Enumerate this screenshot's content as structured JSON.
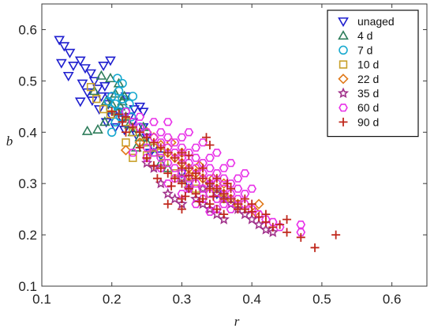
{
  "chart_data": {
    "type": "scatter",
    "xlabel": "r",
    "ylabel": "b",
    "xlim": [
      0.1,
      0.65
    ],
    "ylim": [
      0.1,
      0.65
    ],
    "x_ticks": [
      "0.1",
      "0.2",
      "0.3",
      "0.4",
      "0.5",
      "0.6"
    ],
    "y_ticks": [
      "0.1",
      "0.2",
      "0.3",
      "0.4",
      "0.5",
      "0.6"
    ],
    "grid": false,
    "legend_position": "top-right",
    "series": [
      {
        "name": "unaged",
        "marker": "triangle-down",
        "color": "#1f1fcf",
        "points": [
          [
            0.125,
            0.58
          ],
          [
            0.132,
            0.568
          ],
          [
            0.14,
            0.555
          ],
          [
            0.128,
            0.535
          ],
          [
            0.145,
            0.53
          ],
          [
            0.138,
            0.51
          ],
          [
            0.155,
            0.54
          ],
          [
            0.162,
            0.525
          ],
          [
            0.17,
            0.515
          ],
          [
            0.158,
            0.495
          ],
          [
            0.165,
            0.478
          ],
          [
            0.175,
            0.5
          ],
          [
            0.18,
            0.485
          ],
          [
            0.155,
            0.46
          ],
          [
            0.172,
            0.462
          ],
          [
            0.185,
            0.47
          ],
          [
            0.19,
            0.49
          ],
          [
            0.182,
            0.445
          ],
          [
            0.195,
            0.455
          ],
          [
            0.2,
            0.43
          ],
          [
            0.192,
            0.42
          ],
          [
            0.205,
            0.41
          ],
          [
            0.21,
            0.44
          ],
          [
            0.215,
            0.425
          ],
          [
            0.225,
            0.43
          ],
          [
            0.23,
            0.42
          ],
          [
            0.218,
            0.405
          ],
          [
            0.24,
            0.45
          ],
          [
            0.245,
            0.41
          ],
          [
            0.235,
            0.395
          ],
          [
            0.25,
            0.39
          ],
          [
            0.26,
            0.37
          ],
          [
            0.255,
            0.36
          ],
          [
            0.27,
            0.355
          ],
          [
            0.245,
            0.44
          ],
          [
            0.232,
            0.445
          ],
          [
            0.188,
            0.53
          ],
          [
            0.196,
            0.47
          ],
          [
            0.198,
            0.54
          ],
          [
            0.22,
            0.47
          ],
          [
            0.3,
            0.32
          ],
          [
            0.35,
            0.28
          ],
          [
            0.31,
            0.3
          ]
        ]
      },
      {
        "name": "4 d",
        "marker": "triangle-up",
        "color": "#2e7d5b",
        "points": [
          [
            0.165,
            0.402
          ],
          [
            0.18,
            0.405
          ],
          [
            0.19,
            0.42
          ],
          [
            0.2,
            0.455
          ],
          [
            0.208,
            0.44
          ],
          [
            0.215,
            0.46
          ],
          [
            0.22,
            0.43
          ],
          [
            0.225,
            0.415
          ],
          [
            0.23,
            0.4
          ],
          [
            0.205,
            0.475
          ],
          [
            0.21,
            0.495
          ],
          [
            0.198,
            0.505
          ],
          [
            0.185,
            0.51
          ],
          [
            0.175,
            0.48
          ],
          [
            0.24,
            0.39
          ],
          [
            0.25,
            0.38
          ],
          [
            0.235,
            0.37
          ],
          [
            0.26,
            0.36
          ],
          [
            0.27,
            0.34
          ],
          [
            0.28,
            0.33
          ],
          [
            0.245,
            0.41
          ],
          [
            0.212,
            0.45
          ],
          [
            0.218,
            0.47
          ],
          [
            0.192,
            0.46
          ]
        ]
      },
      {
        "name": "7 d",
        "marker": "circle",
        "color": "#17a9cf",
        "points": [
          [
            0.195,
            0.46
          ],
          [
            0.2,
            0.47
          ],
          [
            0.205,
            0.455
          ],
          [
            0.21,
            0.48
          ],
          [
            0.215,
            0.465
          ],
          [
            0.22,
            0.44
          ],
          [
            0.225,
            0.455
          ],
          [
            0.23,
            0.47
          ],
          [
            0.228,
            0.43
          ],
          [
            0.212,
            0.43
          ],
          [
            0.205,
            0.42
          ],
          [
            0.2,
            0.4
          ],
          [
            0.198,
            0.445
          ],
          [
            0.24,
            0.41
          ],
          [
            0.21,
            0.44
          ],
          [
            0.215,
            0.495
          ],
          [
            0.208,
            0.505
          ]
        ]
      },
      {
        "name": "10 d",
        "marker": "square",
        "color": "#c8a02a",
        "points": [
          [
            0.17,
            0.488
          ],
          [
            0.178,
            0.465
          ],
          [
            0.188,
            0.445
          ],
          [
            0.198,
            0.435
          ],
          [
            0.22,
            0.42
          ],
          [
            0.23,
            0.4
          ],
          [
            0.245,
            0.38
          ],
          [
            0.25,
            0.355
          ],
          [
            0.26,
            0.37
          ],
          [
            0.275,
            0.34
          ],
          [
            0.29,
            0.32
          ],
          [
            0.3,
            0.31
          ],
          [
            0.32,
            0.29
          ],
          [
            0.34,
            0.28
          ],
          [
            0.36,
            0.27
          ],
          [
            0.38,
            0.26
          ],
          [
            0.23,
            0.35
          ],
          [
            0.22,
            0.38
          ],
          [
            0.27,
            0.36
          ],
          [
            0.31,
            0.3
          ]
        ]
      },
      {
        "name": "22 d",
        "marker": "diamond",
        "color": "#e07818",
        "points": [
          [
            0.25,
            0.4
          ],
          [
            0.26,
            0.39
          ],
          [
            0.24,
            0.38
          ],
          [
            0.22,
            0.365
          ],
          [
            0.27,
            0.375
          ],
          [
            0.28,
            0.36
          ],
          [
            0.29,
            0.35
          ],
          [
            0.3,
            0.34
          ],
          [
            0.31,
            0.33
          ],
          [
            0.32,
            0.32
          ],
          [
            0.33,
            0.31
          ],
          [
            0.34,
            0.3
          ],
          [
            0.35,
            0.29
          ],
          [
            0.36,
            0.28
          ],
          [
            0.37,
            0.27
          ],
          [
            0.38,
            0.26
          ],
          [
            0.395,
            0.25
          ],
          [
            0.405,
            0.245
          ],
          [
            0.41,
            0.26
          ],
          [
            0.3,
            0.36
          ],
          [
            0.285,
            0.38
          ],
          [
            0.345,
            0.31
          ],
          [
            0.36,
            0.3
          ],
          [
            0.325,
            0.335
          ],
          [
            0.31,
            0.315
          ]
        ]
      },
      {
        "name": "35 d",
        "marker": "star",
        "color": "#a0308a",
        "points": [
          [
            0.27,
            0.3
          ],
          [
            0.28,
            0.28
          ],
          [
            0.29,
            0.27
          ],
          [
            0.3,
            0.26
          ],
          [
            0.31,
            0.29
          ],
          [
            0.32,
            0.27
          ],
          [
            0.33,
            0.26
          ],
          [
            0.34,
            0.25
          ],
          [
            0.35,
            0.24
          ],
          [
            0.36,
            0.23
          ],
          [
            0.37,
            0.26
          ],
          [
            0.38,
            0.25
          ],
          [
            0.39,
            0.24
          ],
          [
            0.4,
            0.23
          ],
          [
            0.41,
            0.22
          ],
          [
            0.42,
            0.21
          ],
          [
            0.43,
            0.205
          ],
          [
            0.35,
            0.28
          ],
          [
            0.33,
            0.29
          ],
          [
            0.3,
            0.31
          ],
          [
            0.26,
            0.33
          ],
          [
            0.25,
            0.34
          ],
          [
            0.36,
            0.27
          ],
          [
            0.34,
            0.3
          ]
        ]
      },
      {
        "name": "60 d",
        "marker": "hexagon",
        "color": "#e830e8",
        "points": [
          [
            0.22,
            0.44
          ],
          [
            0.23,
            0.42
          ],
          [
            0.24,
            0.41
          ],
          [
            0.25,
            0.4
          ],
          [
            0.26,
            0.39
          ],
          [
            0.27,
            0.38
          ],
          [
            0.28,
            0.37
          ],
          [
            0.29,
            0.36
          ],
          [
            0.3,
            0.35
          ],
          [
            0.31,
            0.34
          ],
          [
            0.32,
            0.33
          ],
          [
            0.33,
            0.32
          ],
          [
            0.34,
            0.31
          ],
          [
            0.35,
            0.3
          ],
          [
            0.36,
            0.29
          ],
          [
            0.37,
            0.28
          ],
          [
            0.38,
            0.27
          ],
          [
            0.39,
            0.26
          ],
          [
            0.4,
            0.25
          ],
          [
            0.41,
            0.24
          ],
          [
            0.42,
            0.23
          ],
          [
            0.43,
            0.225
          ],
          [
            0.44,
            0.215
          ],
          [
            0.47,
            0.22
          ],
          [
            0.47,
            0.205
          ],
          [
            0.25,
            0.37
          ],
          [
            0.26,
            0.36
          ],
          [
            0.27,
            0.35
          ],
          [
            0.28,
            0.34
          ],
          [
            0.29,
            0.33
          ],
          [
            0.3,
            0.32
          ],
          [
            0.31,
            0.31
          ],
          [
            0.32,
            0.3
          ],
          [
            0.33,
            0.29
          ],
          [
            0.34,
            0.28
          ],
          [
            0.35,
            0.27
          ],
          [
            0.36,
            0.26
          ],
          [
            0.37,
            0.25
          ],
          [
            0.27,
            0.4
          ],
          [
            0.28,
            0.39
          ],
          [
            0.29,
            0.38
          ],
          [
            0.3,
            0.37
          ],
          [
            0.31,
            0.36
          ],
          [
            0.32,
            0.35
          ],
          [
            0.33,
            0.34
          ],
          [
            0.34,
            0.33
          ],
          [
            0.35,
            0.32
          ],
          [
            0.36,
            0.31
          ],
          [
            0.37,
            0.3
          ],
          [
            0.38,
            0.29
          ],
          [
            0.39,
            0.28
          ],
          [
            0.24,
            0.43
          ],
          [
            0.26,
            0.42
          ],
          [
            0.3,
            0.39
          ],
          [
            0.32,
            0.37
          ],
          [
            0.34,
            0.35
          ],
          [
            0.36,
            0.33
          ],
          [
            0.38,
            0.31
          ],
          [
            0.4,
            0.29
          ],
          [
            0.23,
            0.36
          ],
          [
            0.25,
            0.35
          ],
          [
            0.27,
            0.33
          ],
          [
            0.29,
            0.31
          ],
          [
            0.31,
            0.29
          ],
          [
            0.33,
            0.27
          ],
          [
            0.35,
            0.25
          ],
          [
            0.28,
            0.3
          ],
          [
            0.3,
            0.28
          ],
          [
            0.32,
            0.26
          ],
          [
            0.34,
            0.245
          ],
          [
            0.28,
            0.42
          ],
          [
            0.31,
            0.4
          ],
          [
            0.33,
            0.38
          ],
          [
            0.35,
            0.36
          ],
          [
            0.37,
            0.34
          ],
          [
            0.39,
            0.32
          ]
        ]
      },
      {
        "name": "90 d",
        "marker": "plus",
        "color": "#c0281c",
        "points": [
          [
            0.2,
            0.44
          ],
          [
            0.21,
            0.435
          ],
          [
            0.215,
            0.42
          ],
          [
            0.22,
            0.43
          ],
          [
            0.23,
            0.41
          ],
          [
            0.24,
            0.4
          ],
          [
            0.25,
            0.39
          ],
          [
            0.26,
            0.38
          ],
          [
            0.27,
            0.37
          ],
          [
            0.28,
            0.36
          ],
          [
            0.29,
            0.35
          ],
          [
            0.3,
            0.34
          ],
          [
            0.31,
            0.33
          ],
          [
            0.32,
            0.32
          ],
          [
            0.33,
            0.31
          ],
          [
            0.34,
            0.3
          ],
          [
            0.35,
            0.29
          ],
          [
            0.36,
            0.28
          ],
          [
            0.37,
            0.27
          ],
          [
            0.38,
            0.26
          ],
          [
            0.39,
            0.25
          ],
          [
            0.4,
            0.245
          ],
          [
            0.41,
            0.235
          ],
          [
            0.42,
            0.225
          ],
          [
            0.43,
            0.215
          ],
          [
            0.45,
            0.205
          ],
          [
            0.47,
            0.195
          ],
          [
            0.49,
            0.175
          ],
          [
            0.52,
            0.2
          ],
          [
            0.335,
            0.39
          ],
          [
            0.34,
            0.375
          ],
          [
            0.31,
            0.355
          ],
          [
            0.3,
            0.36
          ],
          [
            0.27,
            0.33
          ],
          [
            0.28,
            0.32
          ],
          [
            0.29,
            0.31
          ],
          [
            0.3,
            0.3
          ],
          [
            0.31,
            0.29
          ],
          [
            0.32,
            0.28
          ],
          [
            0.33,
            0.27
          ],
          [
            0.34,
            0.26
          ],
          [
            0.35,
            0.25
          ],
          [
            0.36,
            0.24
          ],
          [
            0.3,
            0.33
          ],
          [
            0.32,
            0.31
          ],
          [
            0.34,
            0.29
          ],
          [
            0.36,
            0.27
          ],
          [
            0.38,
            0.25
          ],
          [
            0.3,
            0.27
          ],
          [
            0.28,
            0.26
          ],
          [
            0.3,
            0.25
          ],
          [
            0.26,
            0.335
          ],
          [
            0.25,
            0.35
          ],
          [
            0.265,
            0.31
          ],
          [
            0.31,
            0.315
          ],
          [
            0.33,
            0.33
          ],
          [
            0.35,
            0.31
          ],
          [
            0.37,
            0.29
          ],
          [
            0.39,
            0.27
          ],
          [
            0.285,
            0.295
          ],
          [
            0.305,
            0.275
          ],
          [
            0.325,
            0.265
          ],
          [
            0.345,
            0.275
          ],
          [
            0.365,
            0.3
          ],
          [
            0.4,
            0.26
          ],
          [
            0.42,
            0.24
          ],
          [
            0.44,
            0.22
          ],
          [
            0.45,
            0.23
          ],
          [
            0.22,
            0.4
          ],
          [
            0.24,
            0.37
          ]
        ]
      }
    ]
  }
}
